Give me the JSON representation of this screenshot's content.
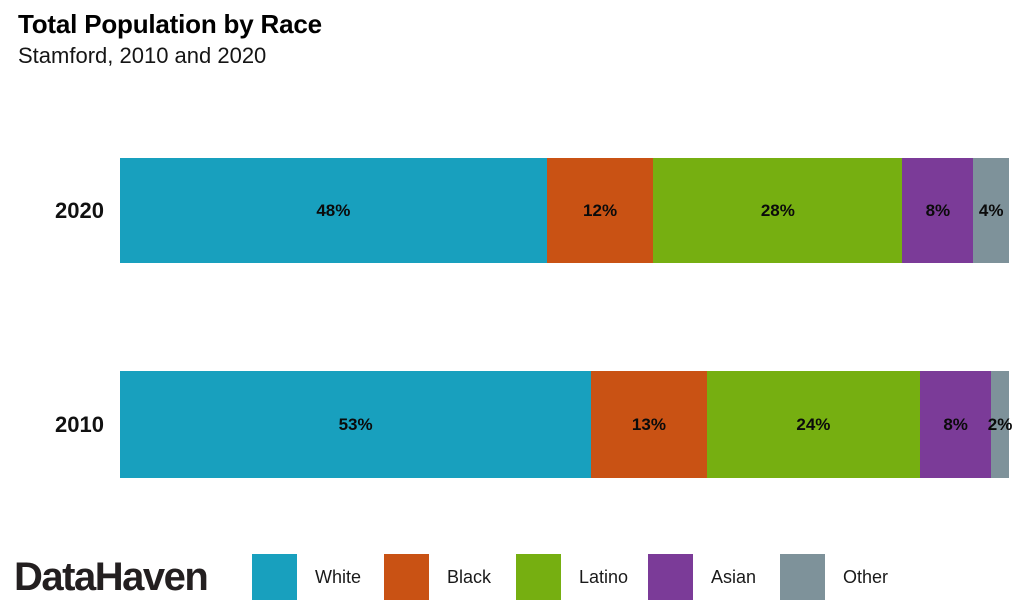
{
  "header": {
    "title": "Total Population by Race",
    "subtitle": "Stamford, 2010 and 2020"
  },
  "branding": {
    "logo_text": "DataHaven"
  },
  "chart_data": {
    "type": "bar",
    "variant": "horizontal-stacked",
    "title": "Total Population by Race",
    "subtitle": "Stamford, 2010 and 2020",
    "categories": [
      "White",
      "Black",
      "Latino",
      "Asian",
      "Other"
    ],
    "colors": [
      "#18A0BE",
      "#C95214",
      "#76AF11",
      "#7B3B98",
      "#7E929A"
    ],
    "rows": [
      {
        "label": "2020",
        "values": [
          48,
          12,
          28,
          8,
          4
        ],
        "value_labels": [
          "48%",
          "12%",
          "28%",
          "8%",
          "4%"
        ]
      },
      {
        "label": "2010",
        "values": [
          53,
          13,
          24,
          8,
          2
        ],
        "value_labels": [
          "53%",
          "13%",
          "24%",
          "8%",
          "2%"
        ]
      }
    ],
    "xlim": [
      0,
      100
    ],
    "unit": "percent",
    "grid": false,
    "legend_position": "bottom",
    "value_label_color": "#0b0b0b"
  }
}
